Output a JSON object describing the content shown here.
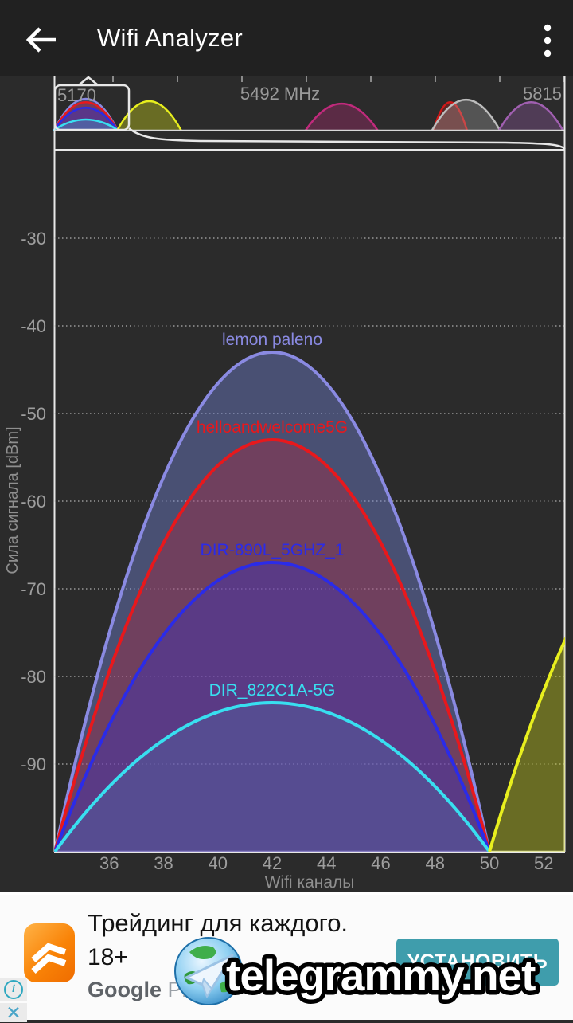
{
  "app_bar": {
    "title": "Wifi Analyzer"
  },
  "chart_data": {
    "type": "area",
    "title": "",
    "xlabel": "Wifi каналы",
    "ylabel": "Сила сигнала [dBm]",
    "x_ticks": [
      36,
      38,
      40,
      42,
      44,
      46,
      48,
      50,
      52
    ],
    "y_ticks": [
      -30,
      -40,
      -50,
      -60,
      -70,
      -80,
      -90
    ],
    "ylim": [
      -100,
      -20
    ],
    "grid": "dotted horizontal",
    "overview": {
      "left_label": "5170",
      "center_label": "5492 MHz",
      "right_label": "5815",
      "freq_range_mhz": [
        5170,
        5815
      ],
      "humps": [
        {
          "color": "#8a8ae2",
          "fill": "rgba(115,130,215,0.40)",
          "center_mhz": 5210,
          "width_mhz": 80,
          "peak_frac": 0.63
        },
        {
          "color": "#e8181c",
          "fill": "rgba(225,20,35,0.30)",
          "center_mhz": 5210,
          "width_mhz": 80,
          "peak_frac": 0.56
        },
        {
          "color": "#2b2be8",
          "fill": "rgba(40,45,225,0.35)",
          "center_mhz": 5210,
          "width_mhz": 80,
          "peak_frac": 0.45
        },
        {
          "color": "#38dff0",
          "fill": "rgba(55,215,235,0.25)",
          "center_mhz": 5210,
          "width_mhz": 80,
          "peak_frac": 0.21
        },
        {
          "color": "#e8ef1e",
          "fill": "rgba(215,225,25,0.36)",
          "center_mhz": 5290,
          "width_mhz": 80,
          "peak_frac": 0.58
        },
        {
          "color": "#c12a7c",
          "fill": "rgba(193,42,124,0.32)",
          "center_mhz": 5533,
          "width_mhz": 90,
          "peak_frac": 0.53
        },
        {
          "color": "#d01818",
          "fill": "rgba(208,24,24,0.30)",
          "center_mhz": 5670,
          "width_mhz": 42,
          "peak_frac": 0.56
        },
        {
          "color": "#bdbdbd",
          "fill": "rgba(189,189,189,0.28)",
          "center_mhz": 5690,
          "width_mhz": 85,
          "peak_frac": 0.61
        },
        {
          "color": "#a05fb0",
          "fill": "rgba(160,95,176,0.32)",
          "center_mhz": 5772,
          "width_mhz": 80,
          "peak_frac": 0.56
        }
      ]
    },
    "series": [
      {
        "name": "lemon paleno",
        "color": "#8a8ae2",
        "fill": "rgba(115,130,215,0.42)",
        "center_channel": 42,
        "channel_span": [
          34,
          50
        ],
        "peak_dbm": -43
      },
      {
        "name": "helloandwelcome5G",
        "color": "#e8181c",
        "fill": "rgba(225,20,35,0.26)",
        "center_channel": 42,
        "channel_span": [
          34,
          50
        ],
        "peak_dbm": -53
      },
      {
        "name": "DIR-890L_5GHZ_1",
        "color": "#2b2be8",
        "fill": "rgba(40,45,225,0.30)",
        "center_channel": 42,
        "channel_span": [
          34,
          50
        ],
        "peak_dbm": -67
      },
      {
        "name": "DIR_822C1A-5G",
        "color": "#38dff0",
        "fill": "rgba(55,215,235,0.12)",
        "center_channel": 42,
        "channel_span": [
          34,
          50
        ],
        "peak_dbm": -83
      },
      {
        "name": "",
        "color": "#e8ef1e",
        "fill": "rgba(215,225,25,0.36)",
        "center_channel": 58,
        "channel_span": [
          50,
          66
        ],
        "peak_dbm": -58
      }
    ]
  },
  "ad": {
    "headline": "Трейдинг для каждого.",
    "age_rating": "18+",
    "store_word1": "Google",
    "store_word2": "Play",
    "cta_label": "УСТАНОВИТЬ",
    "watermark": "telegrammy.net"
  }
}
